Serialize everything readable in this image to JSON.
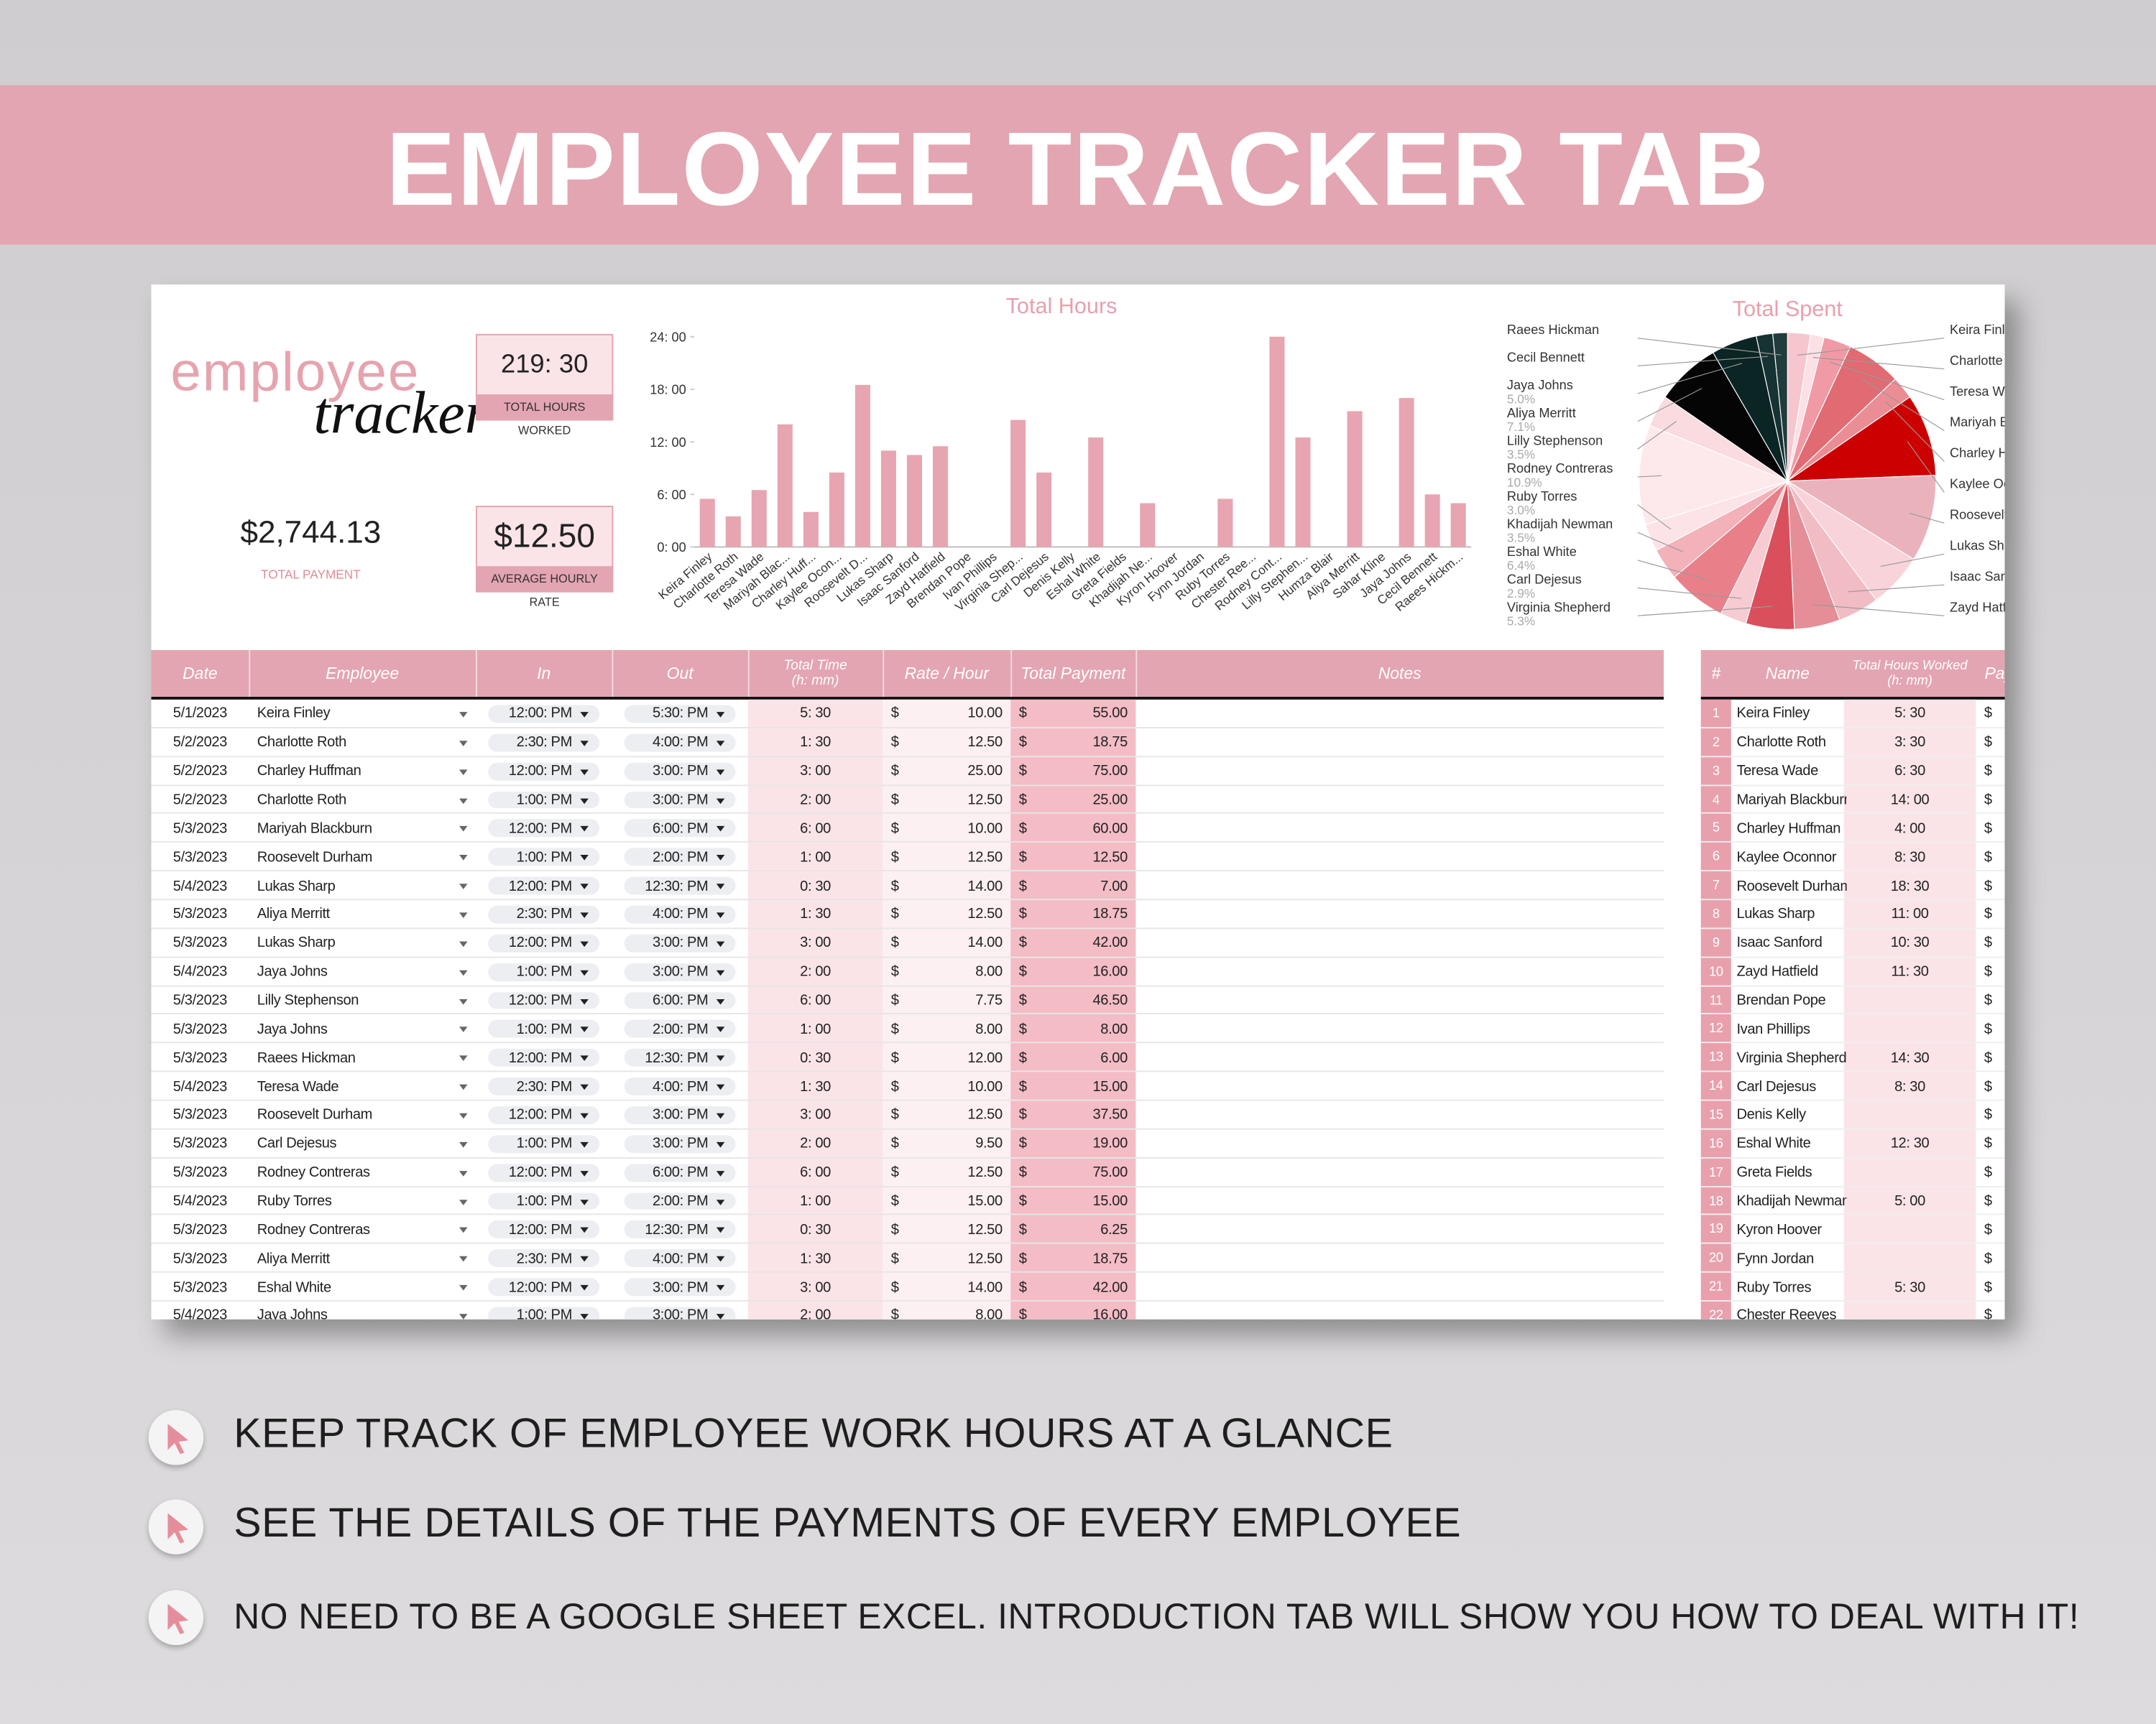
{
  "header": {
    "title": "EMPLOYEE TRACKER TAB"
  },
  "summary": {
    "logo_top": "employee",
    "logo_bottom": "tracker",
    "total_hours": "219: 30",
    "total_hours_label": "TOTAL HOURS WORKED",
    "total_payment": "$2,744.13",
    "total_payment_label": "TOTAL PAYMENT",
    "average_rate": "$12.50",
    "average_rate_label": "AVERAGE HOURLY RATE"
  },
  "chart_data": [
    {
      "type": "bar",
      "title": "Total Hours",
      "color": "#e6a5b0",
      "grid": false,
      "categories": [
        "Keira Finley",
        "Charlotte Roth",
        "Teresa Wade",
        "Mariyah Blac...",
        "Charley Huff...",
        "Kaylee Ocon...",
        "Roosevelt D...",
        "Lukas Sharp",
        "Isaac Sanford",
        "Zayd Hatfield",
        "Brendan Pope",
        "Ivan Phillips",
        "Virginia Shep...",
        "Carl Dejesus",
        "Denis Kelly",
        "Eshal White",
        "Greta Fields",
        "Khadijah Ne...",
        "Kyron Hoover",
        "Fynn Jordan",
        "Ruby Torres",
        "Chester Ree...",
        "Rodney Cont...",
        "Lilly Stephen...",
        "Humza Blair",
        "Aliya Merritt",
        "Sahar Kline",
        "Jaya Johns",
        "Cecil Bennett",
        "Raees Hickm..."
      ],
      "values": [
        5.5,
        3.5,
        6.5,
        14,
        4,
        8.5,
        18.5,
        11,
        10.5,
        11.5,
        0,
        0,
        14.5,
        8.5,
        0,
        12.5,
        0,
        5,
        0,
        0,
        5.5,
        0,
        24,
        12.5,
        0,
        15.5,
        0,
        17,
        6,
        5
      ],
      "ylim": [
        0,
        24
      ],
      "yticks": [
        {
          "value": 0,
          "label": "0: 00"
        },
        {
          "value": 6,
          "label": "6: 00"
        },
        {
          "value": 12,
          "label": "12: 00"
        },
        {
          "value": 18,
          "label": "18: 00"
        },
        {
          "value": 24,
          "label": "24: 00"
        }
      ]
    },
    {
      "type": "pie",
      "title": "Total Spent",
      "categories": [
        "Keira Finley",
        "Charlotte Roth",
        "Teresa Wade",
        "Mariyah Blackburn",
        "Charley Huffman",
        "Kaylee Oconnor",
        "Roosevelt Durham",
        "Lukas Sharp",
        "Isaac Sanford",
        "Zayd Hatfield",
        "Virginia Shepherd",
        "Carl Dejesus",
        "Eshal White",
        "Khadijah Newman",
        "Ruby Torres",
        "Rodney Contreras",
        "Lilly Stephenson",
        "Aliya Merritt",
        "Jaya Johns",
        "Cecil Bennett",
        "Raees Hickman"
      ],
      "values": [
        2.5,
        1.5,
        3.0,
        6.0,
        2.5,
        9.0,
        9.5,
        6.0,
        4.5,
        5.0,
        5.3,
        2.9,
        6.4,
        3.5,
        3.0,
        10.9,
        3.5,
        7.1,
        5.0,
        1.8,
        1.6
      ],
      "value_labels": [
        null,
        null,
        null,
        null,
        null,
        null,
        null,
        null,
        null,
        null,
        "5.3%",
        "2.9%",
        "6.4%",
        "3.5%",
        "3.0%",
        "10.9%",
        "3.5%",
        "7.1%",
        "5.0%",
        null,
        null
      ],
      "colors": [
        "#f6c6cf",
        "#fbe0e5",
        "#f09aa6",
        "#e06b72",
        "#ea8d95",
        "#cc0000",
        "#eab3bc",
        "#f8d3da",
        "#f1bcc4",
        "#e58e98",
        "#d9505c",
        "#f6cbd2",
        "#e98089",
        "#f3b1ba",
        "#fbe3e7",
        "#fde9ec",
        "#f9dbe0",
        "#050505",
        "#0b2424",
        "#163232",
        "#203c3c"
      ]
    }
  ],
  "table": {
    "columns": [
      "Date",
      "Employee",
      "In",
      "Out",
      "Total Time (h: mm)",
      "Rate / Hour",
      "Total Payment",
      "Notes"
    ],
    "currency": "$",
    "rows": [
      [
        "5/1/2023",
        "Keira Finley",
        "12:00: PM",
        "5:30: PM",
        "5: 30",
        "10.00",
        "55.00"
      ],
      [
        "5/2/2023",
        "Charlotte Roth",
        "2:30: PM",
        "4:00: PM",
        "1: 30",
        "12.50",
        "18.75"
      ],
      [
        "5/2/2023",
        "Charley Huffman",
        "12:00: PM",
        "3:00: PM",
        "3: 00",
        "25.00",
        "75.00"
      ],
      [
        "5/2/2023",
        "Charlotte Roth",
        "1:00: PM",
        "3:00: PM",
        "2: 00",
        "12.50",
        "25.00"
      ],
      [
        "5/3/2023",
        "Mariyah Blackburn",
        "12:00: PM",
        "6:00: PM",
        "6: 00",
        "10.00",
        "60.00"
      ],
      [
        "5/3/2023",
        "Roosevelt Durham",
        "1:00: PM",
        "2:00: PM",
        "1: 00",
        "12.50",
        "12.50"
      ],
      [
        "5/4/2023",
        "Lukas Sharp",
        "12:00: PM",
        "12:30: PM",
        "0: 30",
        "14.00",
        "7.00"
      ],
      [
        "5/3/2023",
        "Aliya Merritt",
        "2:30: PM",
        "4:00: PM",
        "1: 30",
        "12.50",
        "18.75"
      ],
      [
        "5/3/2023",
        "Lukas Sharp",
        "12:00: PM",
        "3:00: PM",
        "3: 00",
        "14.00",
        "42.00"
      ],
      [
        "5/4/2023",
        "Jaya Johns",
        "1:00: PM",
        "3:00: PM",
        "2: 00",
        "8.00",
        "16.00"
      ],
      [
        "5/3/2023",
        "Lilly Stephenson",
        "12:00: PM",
        "6:00: PM",
        "6: 00",
        "7.75",
        "46.50"
      ],
      [
        "5/3/2023",
        "Jaya Johns",
        "1:00: PM",
        "2:00: PM",
        "1: 00",
        "8.00",
        "8.00"
      ],
      [
        "5/3/2023",
        "Raees Hickman",
        "12:00: PM",
        "12:30: PM",
        "0: 30",
        "12.00",
        "6.00"
      ],
      [
        "5/4/2023",
        "Teresa Wade",
        "2:30: PM",
        "4:00: PM",
        "1: 30",
        "10.00",
        "15.00"
      ],
      [
        "5/3/2023",
        "Roosevelt Durham",
        "12:00: PM",
        "3:00: PM",
        "3: 00",
        "12.50",
        "37.50"
      ],
      [
        "5/3/2023",
        "Carl Dejesus",
        "1:00: PM",
        "3:00: PM",
        "2: 00",
        "9.50",
        "19.00"
      ],
      [
        "5/3/2023",
        "Rodney Contreras",
        "12:00: PM",
        "6:00: PM",
        "6: 00",
        "12.50",
        "75.00"
      ],
      [
        "5/4/2023",
        "Ruby Torres",
        "1:00: PM",
        "2:00: PM",
        "1: 00",
        "15.00",
        "15.00"
      ],
      [
        "5/3/2023",
        "Rodney Contreras",
        "12:00: PM",
        "12:30: PM",
        "0: 30",
        "12.50",
        "6.25"
      ],
      [
        "5/3/2023",
        "Aliya Merritt",
        "2:30: PM",
        "4:00: PM",
        "1: 30",
        "12.50",
        "18.75"
      ],
      [
        "5/3/2023",
        "Eshal White",
        "12:00: PM",
        "3:00: PM",
        "3: 00",
        "14.00",
        "42.00"
      ],
      [
        "5/4/2023",
        "Jaya Johns",
        "1:00: PM",
        "3:00: PM",
        "2: 00",
        "8.00",
        "16.00"
      ]
    ]
  },
  "side_table": {
    "columns": [
      "#",
      "Name",
      "Total Hours Worked (h: mm)",
      "Payment"
    ],
    "currency": "$",
    "rows": [
      [
        1,
        "Keira Finley",
        "5: 30"
      ],
      [
        2,
        "Charlotte Roth",
        "3: 30"
      ],
      [
        3,
        "Teresa Wade",
        "6: 30"
      ],
      [
        4,
        "Mariyah Blackburn",
        "14: 00"
      ],
      [
        5,
        "Charley Huffman",
        "4: 00"
      ],
      [
        6,
        "Kaylee Oconnor",
        "8: 30"
      ],
      [
        7,
        "Roosevelt Durham",
        "18: 30"
      ],
      [
        8,
        "Lukas Sharp",
        "11: 00"
      ],
      [
        9,
        "Isaac Sanford",
        "10: 30"
      ],
      [
        10,
        "Zayd Hatfield",
        "11: 30"
      ],
      [
        11,
        "Brendan Pope",
        null
      ],
      [
        12,
        "Ivan Phillips",
        null
      ],
      [
        13,
        "Virginia Shepherd",
        "14: 30"
      ],
      [
        14,
        "Carl Dejesus",
        "8: 30"
      ],
      [
        15,
        "Denis Kelly",
        null
      ],
      [
        16,
        "Eshal White",
        "12: 30"
      ],
      [
        17,
        "Greta Fields",
        null
      ],
      [
        18,
        "Khadijah Newman",
        "5: 00"
      ],
      [
        19,
        "Kyron Hoover",
        null
      ],
      [
        20,
        "Fynn Jordan",
        null
      ],
      [
        21,
        "Ruby Torres",
        "5: 30"
      ],
      [
        22,
        "Chester Reeves",
        null
      ]
    ]
  },
  "bullets": [
    "KEEP TRACK OF EMPLOYEE WORK HOURS AT A GLANCE",
    "SEE THE DETAILS OF THE PAYMENTS OF EVERY EMPLOYEE",
    "NO NEED TO BE A GOOGLE SHEET EXCEL. INTRODUCTION TAB WILL SHOW YOU HOW TO DEAL WITH IT!"
  ]
}
